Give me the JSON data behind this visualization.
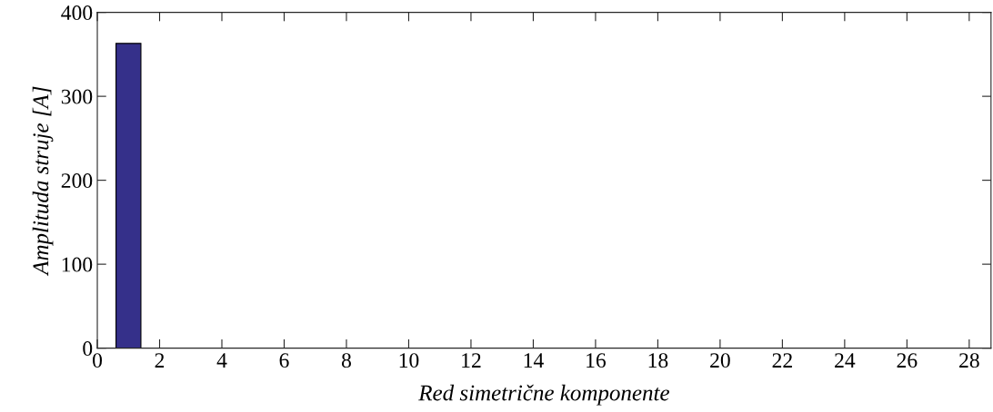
{
  "chart_data": {
    "type": "bar",
    "xlabel": "Red simetrične komponente",
    "ylabel": "Amplituda struje [A]",
    "x": [
      1
    ],
    "values": [
      363
    ],
    "color": "#35308a",
    "xlim": [
      0,
      28.7
    ],
    "xticks": [
      0,
      2,
      4,
      6,
      8,
      10,
      12,
      14,
      16,
      18,
      20,
      22,
      24,
      26,
      28
    ],
    "ylim": [
      0,
      400
    ],
    "yticks": [
      0,
      100,
      200,
      300,
      400
    ],
    "grid": false,
    "legend": false
  }
}
